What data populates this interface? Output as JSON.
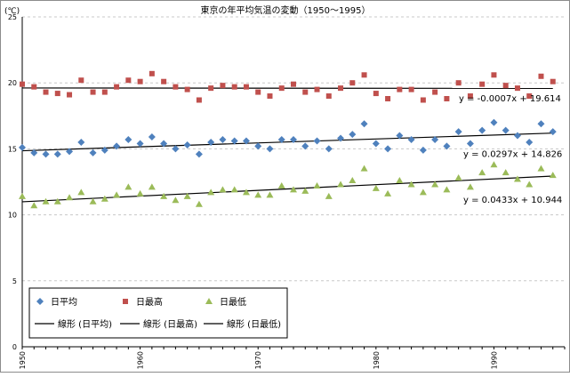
{
  "chart_data": {
    "type": "scatter",
    "title": "東京の年平均気温の変動（1950〜1995）",
    "ylabel": "(℃)",
    "xlabel": "",
    "xlim": [
      1950,
      1996
    ],
    "ylim": [
      0,
      25
    ],
    "yticks": [
      0,
      5,
      10,
      15,
      20,
      25
    ],
    "xticks": [
      1950,
      1960,
      1970,
      1980,
      1990
    ],
    "grid": true,
    "legend_position": "bottom-left",
    "x": [
      1950,
      1951,
      1952,
      1953,
      1954,
      1955,
      1956,
      1957,
      1958,
      1959,
      1960,
      1961,
      1962,
      1963,
      1964,
      1965,
      1966,
      1967,
      1968,
      1969,
      1970,
      1971,
      1972,
      1973,
      1974,
      1975,
      1976,
      1977,
      1978,
      1979,
      1980,
      1981,
      1982,
      1983,
      1984,
      1985,
      1986,
      1987,
      1988,
      1989,
      1990,
      1991,
      1992,
      1993,
      1994,
      1995
    ],
    "series": [
      {
        "name": "日平均",
        "marker": "diamond",
        "color": "#4f81bd",
        "values": [
          15.1,
          14.7,
          14.6,
          14.6,
          14.8,
          15.5,
          14.7,
          14.9,
          15.2,
          15.7,
          15.4,
          15.9,
          15.4,
          15.0,
          15.3,
          14.6,
          15.5,
          15.7,
          15.6,
          15.6,
          15.2,
          15.0,
          15.7,
          15.7,
          15.2,
          15.6,
          15.0,
          15.8,
          16.1,
          16.9,
          15.4,
          15.0,
          16.0,
          15.7,
          14.9,
          15.7,
          15.2,
          16.3,
          15.4,
          16.4,
          17.0,
          16.4,
          16.0,
          15.5,
          16.9,
          16.3
        ]
      },
      {
        "name": "日最高",
        "marker": "square",
        "color": "#c0504d",
        "values": [
          19.9,
          19.7,
          19.3,
          19.2,
          19.1,
          20.2,
          19.3,
          19.3,
          19.7,
          20.2,
          20.1,
          20.7,
          20.1,
          19.7,
          19.5,
          18.7,
          19.6,
          19.8,
          19.7,
          19.7,
          19.3,
          19.0,
          19.6,
          19.9,
          19.3,
          19.5,
          19.0,
          19.6,
          20.0,
          20.6,
          19.2,
          18.8,
          19.5,
          19.5,
          18.7,
          19.3,
          18.8,
          20.0,
          19.0,
          19.9,
          20.6,
          19.8,
          19.6,
          19.0,
          20.5,
          20.1
        ]
      },
      {
        "name": "日最低",
        "marker": "triangle",
        "color": "#9bbb59",
        "values": [
          11.4,
          10.7,
          11.0,
          11.0,
          11.3,
          11.7,
          11.0,
          11.2,
          11.5,
          12.1,
          11.6,
          12.1,
          11.4,
          11.1,
          11.4,
          10.8,
          11.7,
          11.9,
          11.9,
          11.7,
          11.5,
          11.5,
          12.2,
          11.9,
          11.8,
          12.2,
          11.4,
          12.3,
          12.6,
          13.5,
          12.0,
          11.6,
          12.6,
          12.3,
          11.7,
          12.3,
          11.9,
          12.8,
          12.1,
          13.2,
          13.8,
          13.2,
          12.7,
          12.3,
          13.5,
          13.0
        ]
      }
    ],
    "trendlines": [
      {
        "name": "線形 (日平均)",
        "slope": 0.0297,
        "intercept": 14.826,
        "equation": "y = 0.0297x + 14.826"
      },
      {
        "name": "線形 (日最高)",
        "slope": -0.0007,
        "intercept": 19.614,
        "equation": "y = -0.0007x + 19.614"
      },
      {
        "name": "線形 (日最低)",
        "slope": 0.0433,
        "intercept": 10.944,
        "equation": "y = 0.0433x + 10.944"
      }
    ]
  }
}
